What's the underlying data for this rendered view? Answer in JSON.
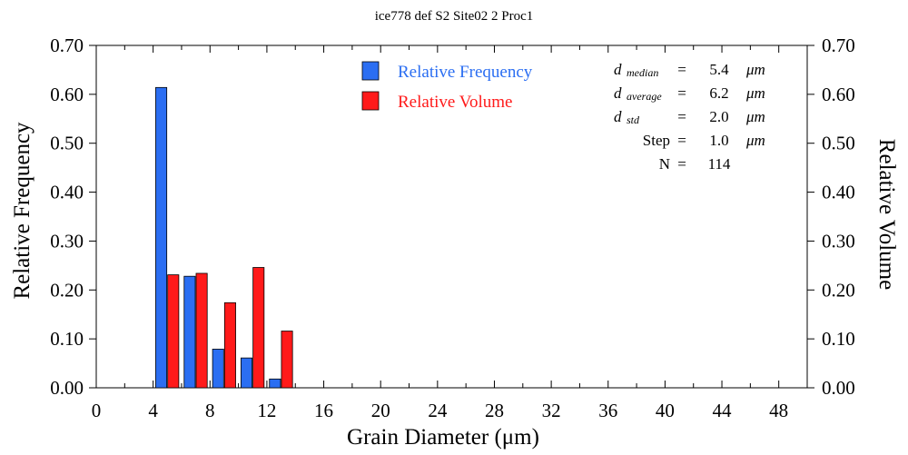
{
  "chart_data": {
    "type": "bar",
    "title": "ice778 def S2 Site02 2 Proc1",
    "xlabel": "Grain Diameter (μm)",
    "ylabel_left": "Relative Frequency",
    "ylabel_right": "Relative Volume",
    "xlim": [
      0,
      50
    ],
    "ylim": [
      0,
      0.7
    ],
    "x_ticks": [
      "0",
      "4",
      "8",
      "12",
      "16",
      "20",
      "24",
      "28",
      "32",
      "36",
      "40",
      "44",
      "48"
    ],
    "y_ticks": [
      "0.00",
      "0.10",
      "0.20",
      "0.30",
      "0.40",
      "0.50",
      "0.60",
      "0.70"
    ],
    "bin_width": 2,
    "bin_starts": [
      4,
      6,
      8,
      10,
      12
    ],
    "series": [
      {
        "name": "Relative Frequency",
        "color": "#2b6ef2",
        "values": [
          0.614,
          0.228,
          0.079,
          0.061,
          0.018
        ]
      },
      {
        "name": "Relative Volume",
        "color": "#ff1a1a",
        "values": [
          0.231,
          0.234,
          0.174,
          0.246,
          0.116
        ]
      }
    ],
    "legend_position": "top-center",
    "stats": [
      {
        "symbol": "d",
        "subscript": "median",
        "eq": "=",
        "value": "5.4",
        "unit": "μm"
      },
      {
        "symbol": "d",
        "subscript": "average",
        "eq": "=",
        "value": "6.2",
        "unit": "μm"
      },
      {
        "symbol": "d",
        "subscript": "std",
        "eq": "=",
        "value": "2.0",
        "unit": "μm"
      },
      {
        "symbol": "Step",
        "subscript": "",
        "eq": "=",
        "value": "1.0",
        "unit": "μm"
      },
      {
        "symbol": "N",
        "subscript": "",
        "eq": "=",
        "value": "114",
        "unit": ""
      }
    ]
  }
}
